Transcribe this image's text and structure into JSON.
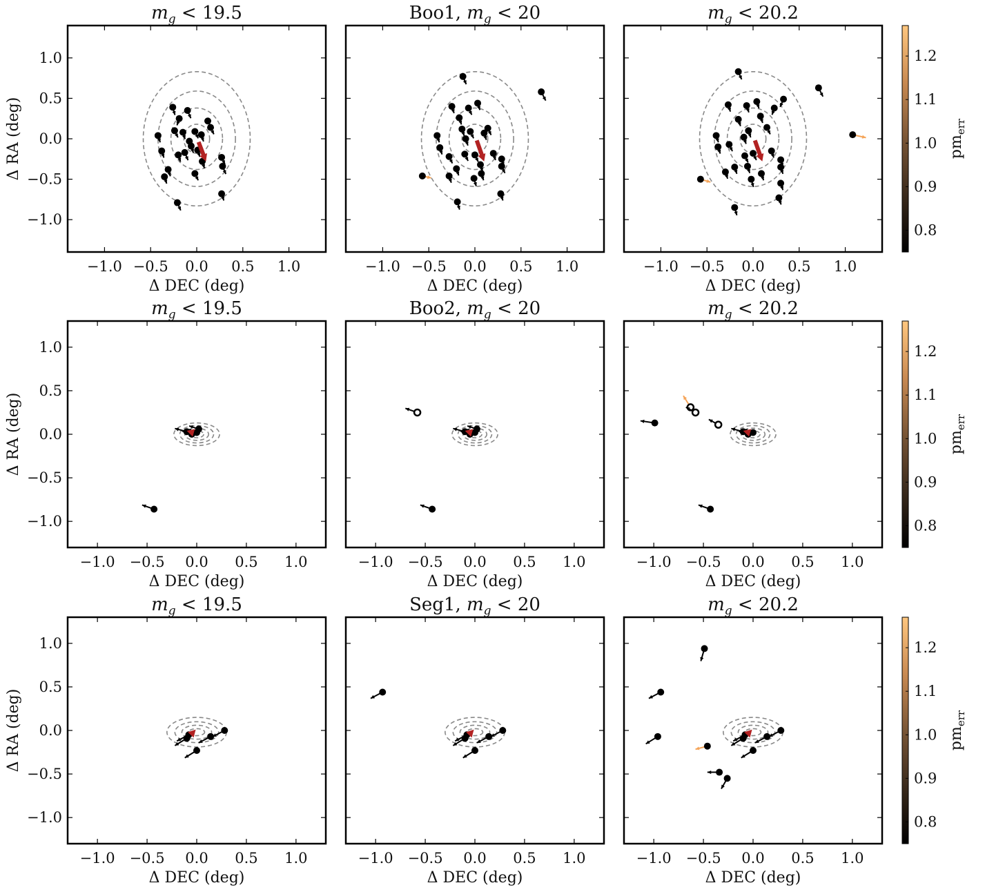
{
  "figure": {
    "colorbar_label": "pm",
    "colorbar_label_sub": "err",
    "colorbar_ticks": [
      "0.8",
      "0.9",
      "1.0",
      "1.1",
      "1.2"
    ],
    "colorbar_range": [
      0.75,
      1.27
    ]
  },
  "chart_data": [
    {
      "type": "scatter",
      "title_pre": "",
      "title_math": "m",
      "title_sub": "g",
      "title_post": " < 19.5",
      "xlabel": "Δ DEC (deg)",
      "ylabel": "Δ RA (deg)",
      "xlim": [
        -1.4,
        1.4
      ],
      "ylim": [
        -1.4,
        1.4
      ],
      "xticks": [
        "−1.0",
        "−0.5",
        "0.0",
        "0.5",
        "1.0"
      ],
      "yticks": [
        "−1.0",
        "−0.5",
        "0.0",
        "0.5",
        "1.0"
      ],
      "contours": {
        "center": [
          0.0,
          0.0
        ],
        "axes": [
          [
            0.14,
            0.18
          ],
          [
            0.28,
            0.38
          ],
          [
            0.42,
            0.59
          ],
          [
            0.58,
            0.83
          ]
        ]
      },
      "mean_arrow": {
        "x": 0.02,
        "y": -0.04,
        "dx": 0.08,
        "dy": -0.24
      },
      "points": [
        [
          -0.26,
          0.39,
          0.02,
          -0.08
        ],
        [
          -0.1,
          0.35,
          0.03,
          -0.08
        ],
        [
          -0.19,
          0.25,
          -0.02,
          -0.07
        ],
        [
          -0.42,
          0.04,
          0.02,
          -0.07
        ],
        [
          -0.38,
          -0.15,
          0.02,
          -0.07
        ],
        [
          -0.15,
          0.08,
          0.02,
          -0.07
        ],
        [
          -0.24,
          0.1,
          0.03,
          -0.07
        ],
        [
          -0.13,
          -0.17,
          0.03,
          -0.08
        ],
        [
          -0.2,
          -0.2,
          0.02,
          -0.07
        ],
        [
          -0.31,
          -0.38,
          0.02,
          -0.07
        ],
        [
          -0.35,
          -0.47,
          0.02,
          -0.07
        ],
        [
          0.12,
          0.22,
          0.03,
          -0.07
        ],
        [
          -0.02,
          0.09,
          0.03,
          -0.07
        ],
        [
          0.06,
          -0.28,
          0.02,
          -0.07
        ],
        [
          -0.02,
          -0.43,
          0.03,
          -0.07
        ],
        [
          0.27,
          -0.23,
          0.03,
          -0.07
        ],
        [
          0.28,
          -0.34,
          0.03,
          -0.08
        ],
        [
          0.27,
          -0.68,
          0.02,
          -0.07
        ],
        [
          -0.21,
          -0.79,
          0.03,
          -0.08
        ],
        [
          0.05,
          0.05,
          0.02,
          -0.07
        ],
        [
          -0.06,
          -0.09,
          0.02,
          -0.07
        ],
        [
          -0.08,
          -0.03,
          0.03,
          -0.07
        ],
        [
          0.01,
          -0.14,
          0.02,
          -0.07
        ],
        [
          0.15,
          0.14,
          0.03,
          -0.07
        ]
      ],
      "colors": [
        "#000000"
      ]
    },
    {
      "type": "scatter",
      "title_pre": "Boo1, ",
      "title_math": "m",
      "title_sub": "g",
      "title_post": " < 20",
      "xlabel": "Δ DEC (deg)",
      "ylabel": "",
      "xlim": [
        -1.4,
        1.4
      ],
      "ylim": [
        -1.4,
        1.4
      ],
      "xticks": [
        "−1.0",
        "−0.5",
        "0.0",
        "0.5",
        "1.0"
      ],
      "yticks": [],
      "contours": {
        "center": [
          0.0,
          0.0
        ],
        "axes": [
          [
            0.14,
            0.18
          ],
          [
            0.28,
            0.38
          ],
          [
            0.42,
            0.59
          ],
          [
            0.58,
            0.83
          ]
        ]
      },
      "mean_arrow": {
        "x": 0.02,
        "y": -0.02,
        "dx": 0.08,
        "dy": -0.26
      },
      "points": [
        [
          -0.13,
          0.77,
          0.03,
          -0.08
        ],
        [
          0.72,
          0.58,
          0.04,
          -0.09
        ],
        [
          -0.25,
          0.4,
          0.02,
          -0.07
        ],
        [
          -0.07,
          0.38,
          0.03,
          -0.07
        ],
        [
          0.03,
          0.44,
          0.02,
          -0.07
        ],
        [
          -0.17,
          0.26,
          0.02,
          -0.07
        ],
        [
          -0.41,
          0.04,
          0.02,
          -0.07
        ],
        [
          -0.38,
          -0.11,
          0.02,
          -0.07
        ],
        [
          -0.28,
          -0.22,
          0.03,
          -0.07
        ],
        [
          -0.11,
          -0.19,
          0.03,
          -0.07
        ],
        [
          -0.28,
          -0.46,
          0.02,
          -0.07
        ],
        [
          -0.2,
          -0.37,
          0.02,
          -0.07
        ],
        [
          -0.01,
          -0.49,
          0.02,
          -0.08
        ],
        [
          0.07,
          -0.43,
          0.02,
          -0.07
        ],
        [
          0.29,
          -0.25,
          0.02,
          -0.07
        ],
        [
          0.29,
          -0.34,
          0.03,
          -0.07
        ],
        [
          0.28,
          -0.68,
          0.02,
          -0.07
        ],
        [
          -0.19,
          -0.78,
          0.02,
          -0.08
        ],
        [
          -0.57,
          -0.46,
          0.08,
          -0.02
        ],
        [
          0.14,
          0.13,
          0.03,
          -0.07
        ],
        [
          0.1,
          0.07,
          0.02,
          -0.07
        ],
        [
          -0.05,
          0.09,
          0.03,
          -0.07
        ],
        [
          0.0,
          -0.2,
          0.03,
          -0.07
        ],
        [
          -0.1,
          0.0,
          0.02,
          -0.07
        ],
        [
          0.2,
          -0.18,
          0.02,
          -0.07
        ],
        [
          -0.14,
          0.12,
          0.02,
          -0.07
        ],
        [
          0.06,
          -0.32,
          0.02,
          -0.07
        ]
      ],
      "colors": [
        "#000000"
      ],
      "highlight": [
        18
      ]
    },
    {
      "type": "scatter",
      "title_pre": "",
      "title_math": "m",
      "title_sub": "g",
      "title_post": " < 20.2",
      "xlabel": "Δ DEC (deg)",
      "ylabel": "",
      "xlim": [
        -1.4,
        1.4
      ],
      "ylim": [
        -1.4,
        1.4
      ],
      "xticks": [
        "−1.0",
        "−0.5",
        "0.0",
        "0.5",
        "1.0"
      ],
      "yticks": [],
      "contours": {
        "center": [
          0.0,
          0.0
        ],
        "axes": [
          [
            0.14,
            0.18
          ],
          [
            0.28,
            0.38
          ],
          [
            0.42,
            0.59
          ],
          [
            0.58,
            0.83
          ]
        ]
      },
      "mean_arrow": {
        "x": 0.02,
        "y": -0.02,
        "dx": 0.08,
        "dy": -0.26
      },
      "points": [
        [
          -0.16,
          0.83,
          0.03,
          -0.08
        ],
        [
          0.71,
          0.63,
          0.04,
          -0.09
        ],
        [
          1.08,
          0.05,
          0.12,
          -0.03
        ],
        [
          -0.27,
          0.42,
          0.02,
          -0.07
        ],
        [
          -0.07,
          0.41,
          0.02,
          -0.07
        ],
        [
          0.04,
          0.46,
          0.02,
          -0.07
        ],
        [
          0.33,
          0.49,
          -0.03,
          -0.08
        ],
        [
          0.23,
          0.38,
          -0.02,
          -0.07
        ],
        [
          -0.4,
          0.04,
          0.02,
          -0.07
        ],
        [
          -0.38,
          -0.1,
          0.02,
          -0.07
        ],
        [
          -0.26,
          -0.07,
          0.03,
          -0.07
        ],
        [
          -0.09,
          -0.21,
          0.03,
          -0.07
        ],
        [
          -0.3,
          -0.41,
          0.02,
          -0.07
        ],
        [
          -0.2,
          -0.35,
          0.02,
          -0.07
        ],
        [
          -0.02,
          -0.5,
          0.02,
          -0.08
        ],
        [
          0.09,
          -0.43,
          0.02,
          -0.07
        ],
        [
          0.3,
          -0.26,
          0.02,
          -0.07
        ],
        [
          0.3,
          -0.35,
          0.02,
          -0.07
        ],
        [
          0.3,
          -0.55,
          0.02,
          -0.07
        ],
        [
          0.28,
          -0.73,
          0.02,
          -0.07
        ],
        [
          -0.2,
          -0.85,
          0.02,
          -0.08
        ],
        [
          -0.57,
          -0.5,
          0.09,
          -0.03
        ],
        [
          0.15,
          0.14,
          0.03,
          -0.07
        ],
        [
          -0.05,
          0.1,
          0.02,
          -0.07
        ],
        [
          0.0,
          -0.18,
          0.03,
          -0.07
        ],
        [
          -0.1,
          0.02,
          0.02,
          -0.07
        ],
        [
          0.2,
          -0.15,
          0.02,
          -0.07
        ],
        [
          -0.16,
          0.24,
          0.02,
          -0.07
        ],
        [
          0.08,
          0.28,
          0.02,
          -0.07
        ],
        [
          -0.06,
          -0.34,
          0.02,
          -0.07
        ]
      ],
      "colors": [
        "#000000"
      ],
      "highlight": [
        2,
        21
      ]
    },
    {
      "type": "scatter",
      "title_pre": "",
      "title_math": "m",
      "title_sub": "g",
      "title_post": " < 19.5",
      "xlabel": "Δ DEC (deg)",
      "ylabel": "Δ RA (deg)",
      "xlim": [
        -1.3,
        1.3
      ],
      "ylim": [
        -1.3,
        1.3
      ],
      "xticks": [
        "−1.0",
        "−0.5",
        "0.0",
        "0.5",
        "1.0"
      ],
      "yticks": [
        "−1.0",
        "−0.5",
        "0.0",
        "0.5",
        "1.0"
      ],
      "contours": {
        "center": [
          0.0,
          0.0
        ],
        "axes": [
          [
            0.07,
            0.04
          ],
          [
            0.12,
            0.07
          ],
          [
            0.17,
            0.1
          ],
          [
            0.23,
            0.13
          ]
        ]
      },
      "mean_arrow": {
        "x": -0.04,
        "y": 0.02,
        "dx": -0.06,
        "dy": 0.02
      },
      "points": [
        [
          -0.43,
          -0.86,
          -0.1,
          0.04
        ],
        [
          -0.1,
          0.03,
          -0.1,
          0.03
        ],
        [
          0.0,
          0.02,
          -0.08,
          0.03
        ],
        [
          -0.05,
          0.0,
          -0.08,
          0.03
        ],
        [
          0.02,
          0.06,
          -0.08,
          0.03
        ]
      ],
      "colors": [
        "#000000"
      ]
    },
    {
      "type": "scatter",
      "title_pre": "Boo2, ",
      "title_math": "m",
      "title_sub": "g",
      "title_post": " < 20",
      "xlabel": "Δ DEC (deg)",
      "ylabel": "",
      "xlim": [
        -1.3,
        1.3
      ],
      "ylim": [
        -1.3,
        1.3
      ],
      "xticks": [
        "−1.0",
        "−0.5",
        "0.0",
        "0.5",
        "1.0"
      ],
      "yticks": [],
      "contours": {
        "center": [
          0.0,
          0.0
        ],
        "axes": [
          [
            0.07,
            0.04
          ],
          [
            0.12,
            0.07
          ],
          [
            0.17,
            0.1
          ],
          [
            0.23,
            0.13
          ]
        ]
      },
      "mean_arrow": {
        "x": -0.04,
        "y": 0.02,
        "dx": -0.06,
        "dy": 0.02
      },
      "points": [
        [
          -0.58,
          0.25,
          -0.1,
          0.04
        ],
        [
          -0.43,
          -0.86,
          -0.1,
          0.04
        ],
        [
          -0.1,
          0.03,
          -0.1,
          0.03
        ],
        [
          0.0,
          0.02,
          -0.08,
          0.03
        ],
        [
          -0.05,
          0.0,
          -0.08,
          0.03
        ],
        [
          0.02,
          0.06,
          -0.08,
          0.03
        ]
      ],
      "colors": [
        "#000000"
      ],
      "open": [
        0
      ]
    },
    {
      "type": "scatter",
      "title_pre": "",
      "title_math": "m",
      "title_sub": "g",
      "title_post": " < 20.2",
      "xlabel": "Δ DEC (deg)",
      "ylabel": "",
      "xlim": [
        -1.3,
        1.3
      ],
      "ylim": [
        -1.3,
        1.3
      ],
      "xticks": [
        "−1.0",
        "−0.5",
        "0.0",
        "0.5",
        "1.0"
      ],
      "yticks": [],
      "contours": {
        "center": [
          0.0,
          0.0
        ],
        "axes": [
          [
            0.07,
            0.04
          ],
          [
            0.12,
            0.07
          ],
          [
            0.17,
            0.1
          ],
          [
            0.23,
            0.13
          ]
        ]
      },
      "mean_arrow": {
        "x": -0.04,
        "y": 0.02,
        "dx": -0.06,
        "dy": 0.02
      },
      "points": [
        [
          -0.99,
          0.13,
          -0.12,
          0.02
        ],
        [
          -0.63,
          0.31,
          -0.06,
          0.11
        ],
        [
          -0.58,
          0.25,
          -0.08,
          0.05
        ],
        [
          -0.35,
          0.11,
          -0.08,
          0.05
        ],
        [
          -0.43,
          -0.86,
          -0.1,
          0.04
        ],
        [
          -0.1,
          0.03,
          -0.1,
          0.03
        ],
        [
          0.0,
          0.02,
          -0.08,
          0.03
        ],
        [
          -0.05,
          0.0,
          -0.08,
          0.03
        ]
      ],
      "colors": [
        "#000000"
      ],
      "open": [
        1,
        2,
        3
      ],
      "highlight": [
        1
      ]
    },
    {
      "type": "scatter",
      "title_pre": "",
      "title_math": "m",
      "title_sub": "g",
      "title_post": " < 19.5",
      "xlabel": "Δ DEC (deg)",
      "ylabel": "Δ RA (deg)",
      "xlim": [
        -1.3,
        1.3
      ],
      "ylim": [
        -1.3,
        1.3
      ],
      "xticks": [
        "−1.0",
        "−0.5",
        "0.0",
        "0.5",
        "1.0"
      ],
      "yticks": [
        "−1.0",
        "−0.5",
        "0.0",
        "0.5",
        "1.0"
      ],
      "contours": {
        "center": [
          0.0,
          -0.02
        ],
        "axes": [
          [
            0.08,
            0.04
          ],
          [
            0.15,
            0.08
          ],
          [
            0.22,
            0.12
          ],
          [
            0.3,
            0.17
          ]
        ]
      },
      "mean_arrow": {
        "x": -0.06,
        "y": -0.05,
        "dx": 0.05,
        "dy": 0.06
      },
      "points": [
        [
          0.28,
          0.0,
          -0.1,
          -0.06
        ],
        [
          0.14,
          -0.07,
          -0.1,
          -0.06
        ],
        [
          0.0,
          -0.23,
          -0.1,
          -0.07
        ],
        [
          -0.08,
          -0.05,
          -0.1,
          -0.06
        ],
        [
          -0.1,
          -0.09,
          -0.1,
          -0.07
        ]
      ],
      "colors": [
        "#000000"
      ]
    },
    {
      "type": "scatter",
      "title_pre": "Seg1, ",
      "title_math": "m",
      "title_sub": "g",
      "title_post": " < 20",
      "xlabel": "Δ DEC (deg)",
      "ylabel": "",
      "xlim": [
        -1.3,
        1.3
      ],
      "ylim": [
        -1.3,
        1.3
      ],
      "xticks": [
        "−1.0",
        "−0.5",
        "0.0",
        "0.5",
        "1.0"
      ],
      "yticks": [],
      "contours": {
        "center": [
          0.0,
          -0.02
        ],
        "axes": [
          [
            0.08,
            0.04
          ],
          [
            0.15,
            0.08
          ],
          [
            0.22,
            0.12
          ],
          [
            0.3,
            0.17
          ]
        ]
      },
      "mean_arrow": {
        "x": -0.06,
        "y": -0.05,
        "dx": 0.05,
        "dy": 0.06
      },
      "points": [
        [
          -0.93,
          0.44,
          -0.1,
          -0.06
        ],
        [
          0.28,
          0.0,
          -0.1,
          -0.06
        ],
        [
          0.14,
          -0.07,
          -0.1,
          -0.06
        ],
        [
          0.0,
          -0.23,
          -0.1,
          -0.07
        ],
        [
          -0.08,
          -0.05,
          -0.1,
          -0.06
        ],
        [
          -0.1,
          -0.09,
          -0.1,
          -0.07
        ]
      ],
      "colors": [
        "#000000"
      ]
    },
    {
      "type": "scatter",
      "title_pre": "",
      "title_math": "m",
      "title_sub": "g",
      "title_post": " < 20.2",
      "xlabel": "Δ DEC (deg)",
      "ylabel": "",
      "xlim": [
        -1.3,
        1.3
      ],
      "ylim": [
        -1.3,
        1.3
      ],
      "xticks": [
        "−1.0",
        "−0.5",
        "0.0",
        "0.5",
        "1.0"
      ],
      "yticks": [],
      "contours": {
        "center": [
          0.0,
          -0.02
        ],
        "axes": [
          [
            0.08,
            0.04
          ],
          [
            0.15,
            0.08
          ],
          [
            0.22,
            0.12
          ],
          [
            0.3,
            0.17
          ]
        ]
      },
      "mean_arrow": {
        "x": -0.06,
        "y": -0.05,
        "dx": 0.05,
        "dy": 0.06
      },
      "points": [
        [
          -0.49,
          0.94,
          -0.03,
          -0.12
        ],
        [
          -0.93,
          0.44,
          -0.1,
          -0.06
        ],
        [
          -0.96,
          -0.07,
          -0.1,
          -0.07
        ],
        [
          -0.46,
          -0.18,
          -0.1,
          -0.03
        ],
        [
          -0.34,
          -0.48,
          -0.1,
          0.0
        ],
        [
          -0.26,
          -0.55,
          -0.05,
          -0.1
        ],
        [
          0.28,
          0.0,
          -0.1,
          -0.06
        ],
        [
          0.14,
          -0.07,
          -0.1,
          -0.06
        ],
        [
          0.0,
          -0.23,
          -0.1,
          -0.07
        ],
        [
          -0.08,
          -0.05,
          -0.1,
          -0.06
        ],
        [
          -0.1,
          -0.09,
          -0.1,
          -0.07
        ]
      ],
      "colors": [
        "#000000"
      ],
      "highlight": [
        3
      ]
    }
  ]
}
